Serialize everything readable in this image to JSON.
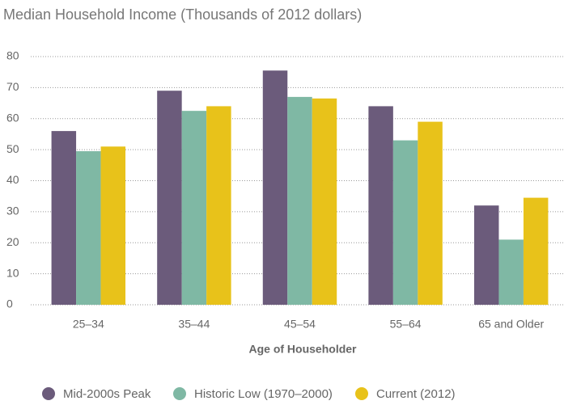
{
  "chart_data": {
    "type": "bar",
    "title": "Median Household Income (Thousands of 2012 dollars)",
    "x_label": "Age of Householder",
    "categories": [
      "25–34",
      "35–44",
      "45–54",
      "55–64",
      "65 and Older"
    ],
    "series": [
      {
        "name": "Mid-2000s Peak",
        "color": "#6b5b7b",
        "values": [
          56,
          69,
          75.5,
          64,
          32
        ]
      },
      {
        "name": "Historic Low (1970–2000)",
        "color": "#7fb8a4",
        "values": [
          49.5,
          62.5,
          67,
          53,
          21
        ]
      },
      {
        "name": "Current (2012)",
        "color": "#e8c21a",
        "values": [
          51,
          64,
          66.5,
          59,
          34.5
        ]
      }
    ],
    "ylim": [
      0,
      80
    ],
    "yticks": [
      0,
      10,
      20,
      30,
      40,
      50,
      60,
      70,
      80
    ],
    "grid": true,
    "legend": "bottom"
  }
}
